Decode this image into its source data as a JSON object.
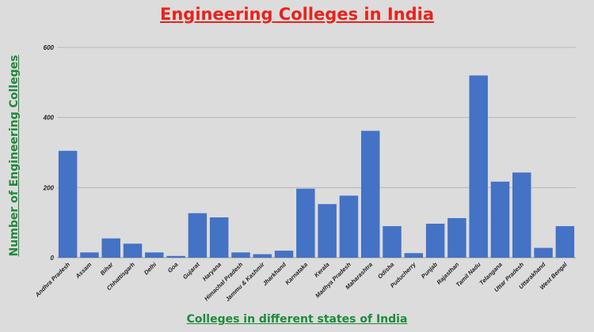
{
  "chart_data": {
    "type": "bar",
    "title": "Engineering Colleges in India",
    "xlabel": "Colleges in different states of India",
    "ylabel": "Number of Engineering Colleges",
    "ylim": [
      0,
      600
    ],
    "yticks": [
      0,
      200,
      400,
      600
    ],
    "grid": true,
    "bar_color": "#4472c4",
    "categories": [
      "Andhra Pradesh",
      "Assam",
      "Bihar",
      "Chhattisgarh",
      "Delhi",
      "Goa",
      "Gujarat",
      "Haryana",
      "Himachal Pradesh",
      "Jammu & Kashmir",
      "Jharkhand",
      "Karnataka",
      "Kerala",
      "Madhya Pradesh",
      "Maharashtra",
      "Odisha",
      "Puducherry",
      "Punjab",
      "Rajasthan",
      "Tamil Nadu",
      "Telangana",
      "Uttar Pradesh",
      "Uttarakhand",
      "West Bengal"
    ],
    "values": [
      305,
      15,
      55,
      40,
      15,
      5,
      127,
      115,
      15,
      10,
      20,
      197,
      153,
      177,
      362,
      90,
      13,
      97,
      113,
      520,
      217,
      243,
      28,
      90
    ]
  }
}
